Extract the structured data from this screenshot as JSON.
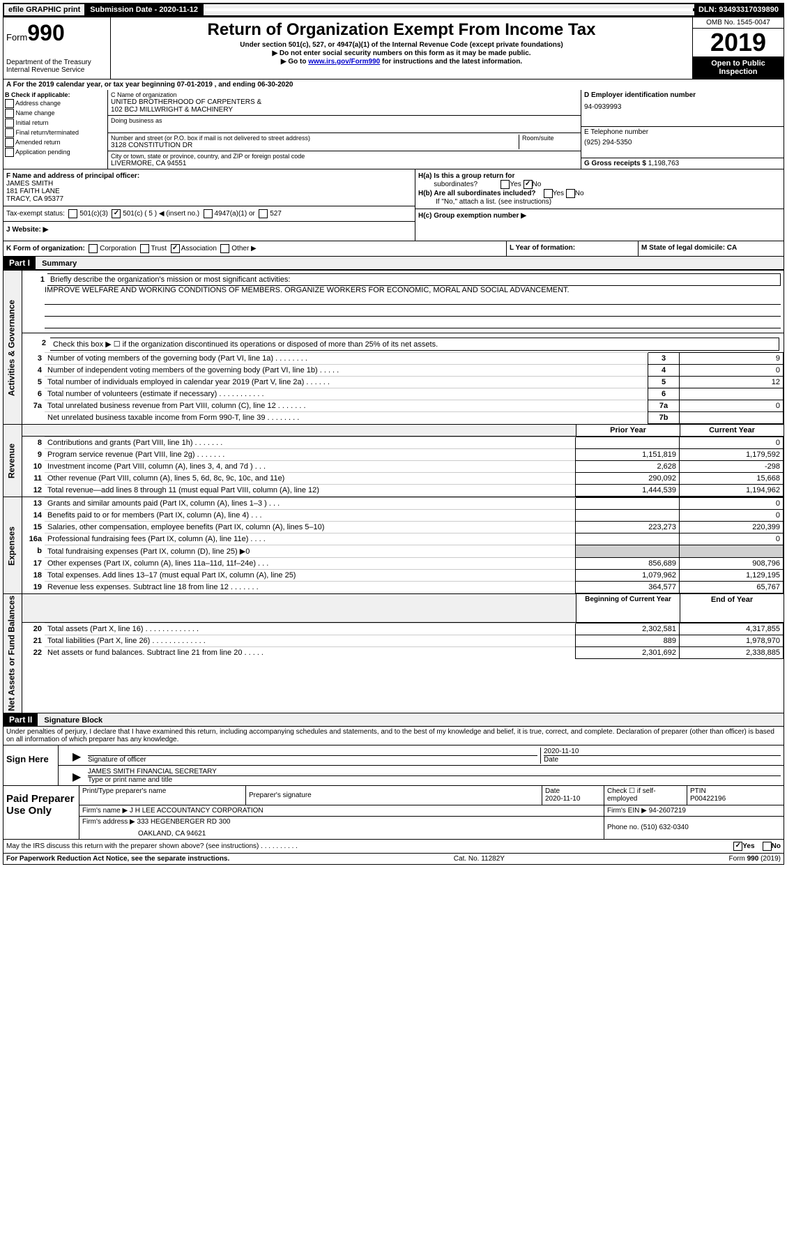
{
  "topbar": {
    "efile": "efile GRAPHIC print",
    "submission_label": "Submission Date - 2020-11-12",
    "dln": "DLN: 93493317039890"
  },
  "header": {
    "form_label": "Form",
    "form_number": "990",
    "dept": "Department of the Treasury",
    "irs": "Internal Revenue Service",
    "title": "Return of Organization Exempt From Income Tax",
    "subtitle1": "Under section 501(c), 527, or 4947(a)(1) of the Internal Revenue Code (except private foundations)",
    "subtitle2": "▶ Do not enter social security numbers on this form as it may be made public.",
    "subtitle3_pre": "▶ Go to ",
    "subtitle3_link": "www.irs.gov/Form990",
    "subtitle3_post": " for instructions and the latest information.",
    "omb": "OMB No. 1545-0047",
    "year": "2019",
    "open": "Open to Public",
    "inspection": "Inspection"
  },
  "line_a": "A For the 2019 calendar year, or tax year beginning 07-01-2019    , and ending 06-30-2020",
  "section_b": {
    "title": "B Check if applicable:",
    "opts": [
      "Address change",
      "Name change",
      "Initial return",
      "Final return/terminated",
      "Amended return",
      "Application pending"
    ]
  },
  "section_c": {
    "name_label": "C Name of organization",
    "name1": "UNITED BROTHERHOOD OF CARPENTERS &",
    "name2": "102 BCJ MILLWRIGHT & MACHINERY",
    "dba_label": "Doing business as",
    "street_label": "Number and street (or P.O. box if mail is not delivered to street address)",
    "room_label": "Room/suite",
    "street": "3128 CONSTITUTION DR",
    "city_label": "City or town, state or province, country, and ZIP or foreign postal code",
    "city": "LIVERMORE, CA  94551"
  },
  "section_d": {
    "ein_label": "D Employer identification number",
    "ein": "94-0939993",
    "phone_label": "E Telephone number",
    "phone": "(925) 294-5350",
    "gross_label": "G Gross receipts $ ",
    "gross": "1,198,763"
  },
  "section_f": {
    "label": "F Name and address of principal officer:",
    "name": "JAMES SMITH",
    "addr1": "181 FAITH LANE",
    "addr2": "TRACY, CA  95377"
  },
  "section_h": {
    "a": "H(a)  Is this a group return for",
    "a2": "subordinates?",
    "b": "H(b)  Are all subordinates included?",
    "b2": "If \"No,\" attach a list. (see instructions)",
    "c": "H(c)  Group exemption number ▶"
  },
  "tax_exempt": {
    "label": "Tax-exempt status:",
    "c3": "501(c)(3)",
    "c5": "501(c) ( 5 ) ◀ (insert no.)",
    "a1": "4947(a)(1) or",
    "s527": "527"
  },
  "website": "J   Website: ▶",
  "section_k": {
    "label": "K Form of organization:",
    "corp": "Corporation",
    "trust": "Trust",
    "assoc": "Association",
    "other": "Other ▶",
    "l": "L Year of formation:",
    "m": "M State of legal domicile: CA"
  },
  "part1": {
    "header": "Part I",
    "title": "Summary",
    "line1": "Briefly describe the organization's mission or most significant activities:",
    "mission": "IMPROVE WELFARE AND WORKING CONDITIONS OF MEMBERS. ORGANIZE WORKERS FOR ECONOMIC, MORAL AND SOCIAL ADVANCEMENT.",
    "line2": "Check this box ▶ ☐ if the organization discontinued its operations or disposed of more than 25% of its net assets.",
    "side_gov": "Activities & Governance",
    "side_rev": "Revenue",
    "side_exp": "Expenses",
    "side_net": "Net Assets or Fund Balances",
    "prior_year": "Prior Year",
    "current_year": "Current Year",
    "beg_year": "Beginning of Current Year",
    "end_year": "End of Year",
    "rows_gov": [
      {
        "n": "3",
        "d": "Number of voting members of the governing body (Part VI, line 1a)   .    .    .    .    .    .    .    .",
        "k": "3",
        "v": "9"
      },
      {
        "n": "4",
        "d": "Number of independent voting members of the governing body (Part VI, line 1b)  .    .    .    .    .",
        "k": "4",
        "v": "0"
      },
      {
        "n": "5",
        "d": "Total number of individuals employed in calendar year 2019 (Part V, line 2a)   .    .    .    .    .    .",
        "k": "5",
        "v": "12"
      },
      {
        "n": "6",
        "d": "Total number of volunteers (estimate if necessary)   .    .    .    .    .    .    .    .    .    .    .",
        "k": "6",
        "v": ""
      },
      {
        "n": "7a",
        "d": "Total unrelated business revenue from Part VIII, column (C), line 12   .    .    .    .    .    .    .",
        "k": "7a",
        "v": "0"
      },
      {
        "n": "",
        "d": "Net unrelated business taxable income from Form 990-T, line 39   .    .    .    .    .    .    .    .",
        "k": "7b",
        "v": ""
      }
    ],
    "rows_rev": [
      {
        "n": "8",
        "d": "Contributions and grants (Part VIII, line 1h)   .    .    .    .    .    .    .",
        "p": "",
        "c": "0"
      },
      {
        "n": "9",
        "d": "Program service revenue (Part VIII, line 2g)   .    .    .    .    .    .    .",
        "p": "1,151,819",
        "c": "1,179,592"
      },
      {
        "n": "10",
        "d": "Investment income (Part VIII, column (A), lines 3, 4, and 7d )   .    .    .",
        "p": "2,628",
        "c": "-298"
      },
      {
        "n": "11",
        "d": "Other revenue (Part VIII, column (A), lines 5, 6d, 8c, 9c, 10c, and 11e)",
        "p": "290,092",
        "c": "15,668"
      },
      {
        "n": "12",
        "d": "Total revenue—add lines 8 through 11 (must equal Part VIII, column (A), line 12)",
        "p": "1,444,539",
        "c": "1,194,962"
      }
    ],
    "rows_exp": [
      {
        "n": "13",
        "d": "Grants and similar amounts paid (Part IX, column (A), lines 1–3 )   .    .    .",
        "p": "",
        "c": "0"
      },
      {
        "n": "14",
        "d": "Benefits paid to or for members (Part IX, column (A), line 4)   .    .    .",
        "p": "",
        "c": "0"
      },
      {
        "n": "15",
        "d": "Salaries, other compensation, employee benefits (Part IX, column (A), lines 5–10)",
        "p": "223,273",
        "c": "220,399"
      },
      {
        "n": "16a",
        "d": "Professional fundraising fees (Part IX, column (A), line 11e)   .    .    .    .",
        "p": "",
        "c": "0"
      },
      {
        "n": "b",
        "d": "Total fundraising expenses (Part IX, column (D), line 25) ▶0",
        "p": "__SHADE__",
        "c": "__SHADE__"
      },
      {
        "n": "17",
        "d": "Other expenses (Part IX, column (A), lines 11a–11d, 11f–24e)   .    .    .",
        "p": "856,689",
        "c": "908,796"
      },
      {
        "n": "18",
        "d": "Total expenses. Add lines 13–17 (must equal Part IX, column (A), line 25)",
        "p": "1,079,962",
        "c": "1,129,195"
      },
      {
        "n": "19",
        "d": "Revenue less expenses. Subtract line 18 from line 12   .    .    .    .    .    .    .",
        "p": "364,577",
        "c": "65,767"
      }
    ],
    "rows_net": [
      {
        "n": "20",
        "d": "Total assets (Part X, line 16)   .    .    .    .    .    .    .    .    .    .    .    .    .",
        "p": "2,302,581",
        "c": "4,317,855"
      },
      {
        "n": "21",
        "d": "Total liabilities (Part X, line 26)   .    .    .    .    .    .    .    .    .    .    .    .    .",
        "p": "889",
        "c": "1,978,970"
      },
      {
        "n": "22",
        "d": "Net assets or fund balances. Subtract line 21 from line 20   .    .    .    .    .",
        "p": "2,301,692",
        "c": "2,338,885"
      }
    ]
  },
  "part2": {
    "header": "Part II",
    "title": "Signature Block",
    "perjury": "Under penalties of perjury, I declare that I have examined this return, including accompanying schedules and statements, and to the best of my knowledge and belief, it is true, correct, and complete. Declaration of preparer (other than officer) is based on all information of which preparer has any knowledge."
  },
  "sign": {
    "label": "Sign Here",
    "sig_label": "Signature of officer",
    "date": "2020-11-10",
    "date_label": "Date",
    "name": "JAMES SMITH  FINANCIAL SECRETARY",
    "name_label": "Type or print name and title"
  },
  "prep": {
    "label": "Paid Preparer Use Only",
    "col1": "Print/Type preparer's name",
    "col2": "Preparer's signature",
    "col3": "Date",
    "col3_val": "2020-11-10",
    "col4": "Check ☐ if self-employed",
    "col5": "PTIN",
    "ptin": "P00422196",
    "firm_name_label": "Firm's name      ▶ ",
    "firm_name": "J H LEE ACCOUNTANCY CORPORATION",
    "firm_ein_label": "Firm's EIN ▶ ",
    "firm_ein": "94-2607219",
    "firm_addr_label": "Firm's address ▶ ",
    "firm_addr1": "333 HEGENBERGER RD 300",
    "firm_addr2": "OAKLAND, CA  94621",
    "phone_label": "Phone no. ",
    "phone": "(510) 632-0340"
  },
  "discuss": "May the IRS discuss this return with the preparer shown above? (see instructions)   .    .    .    .    .    .    .    .    .    .",
  "footer": {
    "paperwork": "For Paperwork Reduction Act Notice, see the separate instructions.",
    "cat": "Cat. No. 11282Y",
    "form": "Form 990 (2019)"
  },
  "yesno": {
    "yes": "Yes",
    "no": "No"
  }
}
